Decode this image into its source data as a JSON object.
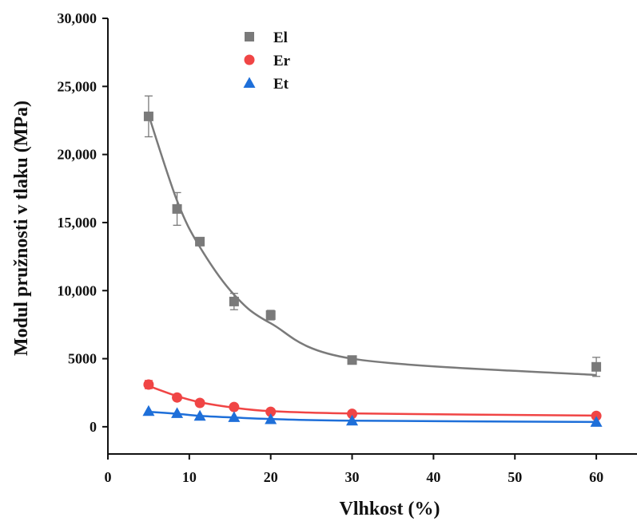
{
  "chart_data": {
    "type": "scatter",
    "xlabel": "Vlhkost (%)",
    "ylabel": "Modul pružnosti v tlaku (MPa)",
    "xlim": [
      0,
      65
    ],
    "ylim": [
      -2000,
      30000
    ],
    "x_ticks": [
      0,
      10,
      20,
      30,
      40,
      50,
      60
    ],
    "x_tick_labels": [
      "0",
      "10",
      "20",
      "30",
      "40",
      "50",
      "60"
    ],
    "y_ticks": [
      0,
      5000,
      10000,
      15000,
      20000,
      25000,
      30000
    ],
    "y_tick_labels": [
      "0",
      "5000",
      "10,000",
      "15,000",
      "20,000",
      "25,000",
      "30,000"
    ],
    "grid": false,
    "legend_position": "top-left",
    "series": [
      {
        "name": "El",
        "color": "#7a7a7a",
        "marker": "square",
        "x": [
          5,
          8.5,
          11.3,
          15.5,
          20,
          30,
          60
        ],
        "y": [
          22800,
          16000,
          13600,
          9200,
          8200,
          4900,
          4400
        ],
        "error": [
          1500,
          1200,
          300,
          600,
          350,
          200,
          700
        ],
        "fit_y": [
          22900,
          16600,
          13200,
          9700,
          7600,
          5000,
          3800
        ]
      },
      {
        "name": "Er",
        "color": "#f04545",
        "marker": "circle",
        "x": [
          5,
          8.5,
          11.3,
          15.5,
          20,
          30,
          60
        ],
        "y": [
          3100,
          2150,
          1750,
          1450,
          1100,
          950,
          800
        ],
        "error": [
          300,
          0,
          0,
          0,
          0,
          0,
          0
        ],
        "fit_y": [
          3000,
          2250,
          1800,
          1400,
          1150,
          980,
          820
        ]
      },
      {
        "name": "Et",
        "color": "#1e6fd9",
        "marker": "triangle",
        "x": [
          5,
          8.5,
          11.3,
          15.5,
          20,
          30,
          60
        ],
        "y": [
          1150,
          1000,
          800,
          700,
          550,
          450,
          350
        ],
        "error": [
          0,
          0,
          0,
          0,
          0,
          0,
          0
        ],
        "fit_y": [
          1100,
          950,
          800,
          680,
          570,
          450,
          350
        ]
      }
    ]
  }
}
